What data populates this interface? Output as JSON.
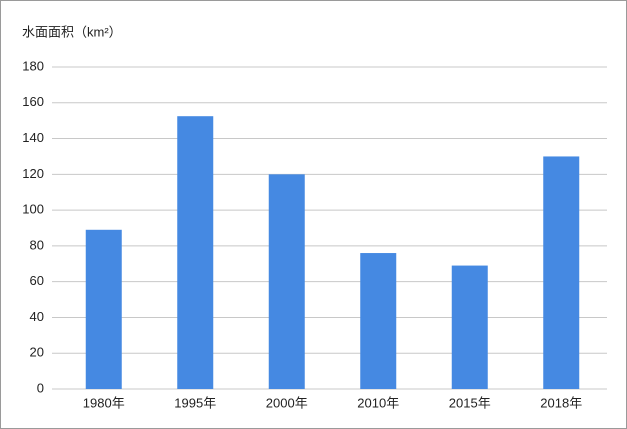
{
  "chart_data": {
    "type": "bar",
    "title": "水面面积（km²）",
    "categories": [
      "1980年",
      "1995年",
      "2000年",
      "2010年",
      "2015年",
      "2018年"
    ],
    "values": [
      89,
      152.5,
      120,
      76,
      69,
      130
    ],
    "color": "#4589e2",
    "ylim": [
      0,
      180
    ],
    "yticks": [
      0,
      20,
      40,
      60,
      80,
      100,
      120,
      140,
      160,
      180
    ],
    "grid": true
  }
}
